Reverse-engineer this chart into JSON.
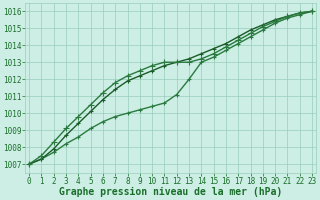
{
  "title": "Graphe pression niveau de la mer (hPa)",
  "xlabel_hours": [
    0,
    1,
    2,
    3,
    4,
    5,
    6,
    7,
    8,
    9,
    10,
    11,
    12,
    13,
    14,
    15,
    16,
    17,
    18,
    19,
    20,
    21,
    22,
    23
  ],
  "ylim": [
    1006.5,
    1016.5
  ],
  "xlim": [
    -0.3,
    23.3
  ],
  "yticks": [
    1007,
    1008,
    1009,
    1010,
    1011,
    1012,
    1013,
    1014,
    1015,
    1016
  ],
  "background_color": "#cceee4",
  "grid_color": "#99ccbb",
  "text_color": "#1a6e2a",
  "font_family": "monospace",
  "series": [
    [
      1007.0,
      1007.3,
      1007.7,
      1008.2,
      1008.6,
      1009.1,
      1009.5,
      1009.8,
      1010.0,
      1010.2,
      1010.4,
      1010.6,
      1011.1,
      1012.0,
      1013.0,
      1013.3,
      1013.7,
      1014.1,
      1014.5,
      1014.9,
      1015.3,
      1015.6,
      1015.8,
      1016.0
    ],
    [
      1007.0,
      1007.3,
      1007.9,
      1008.7,
      1009.4,
      1010.1,
      1010.8,
      1011.4,
      1011.9,
      1012.2,
      1012.5,
      1012.8,
      1013.0,
      1013.2,
      1013.5,
      1013.8,
      1014.1,
      1014.5,
      1014.9,
      1015.2,
      1015.5,
      1015.7,
      1015.9,
      1016.0
    ],
    [
      1007.0,
      1007.5,
      1008.3,
      1009.1,
      1009.8,
      1010.5,
      1011.2,
      1011.8,
      1012.2,
      1012.5,
      1012.8,
      1013.0,
      1013.0,
      1013.0,
      1013.2,
      1013.5,
      1013.9,
      1014.3,
      1014.7,
      1015.1,
      1015.4,
      1015.7,
      1015.9,
      1016.0
    ]
  ],
  "series_colors": [
    "#2a7a40",
    "#1a5c28",
    "#2a7a40"
  ],
  "series_lw": [
    1.0,
    1.0,
    1.0
  ],
  "marker": "+",
  "marker_sizes": [
    3,
    3,
    4
  ],
  "markeredgewidth": 0.8,
  "title_fontsize": 7,
  "tick_fontsize": 5.5
}
